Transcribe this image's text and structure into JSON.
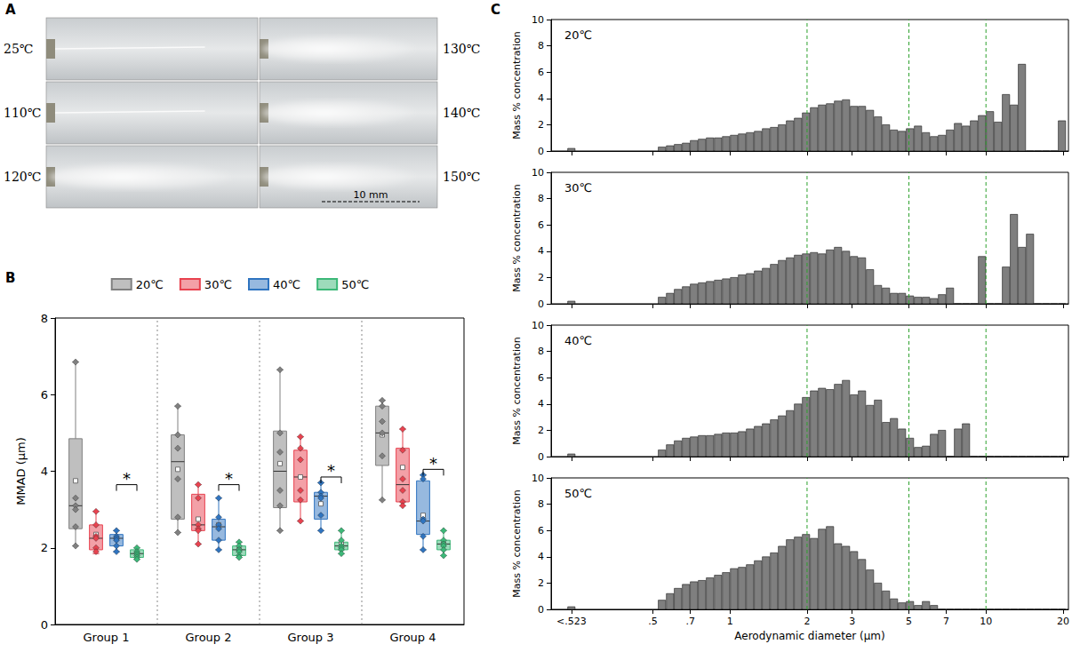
{
  "panel_letters": [
    "A",
    "B",
    "C"
  ],
  "photo_panel": {
    "photos": [
      "25℃",
      "110℃",
      "120℃",
      "130℃",
      "140℃",
      "150℃"
    ],
    "scale_bar": "10 mm"
  },
  "chart_data": [
    {
      "type": "boxplot",
      "categories": [
        "Group 1",
        "Group 2",
        "Group 3",
        "Group 4"
      ],
      "y_label": "MMAD (μm)",
      "ylim": [
        0,
        8
      ],
      "yticks": [
        0,
        2,
        4,
        6,
        8
      ],
      "grid": false,
      "legend": "top",
      "series": [
        {
          "name": "20℃",
          "color": "#808080",
          "boxes": [
            [
              2.05,
              2.5,
              3.1,
              4.85,
              6.85
            ],
            [
              2.4,
              2.75,
              4.25,
              4.95,
              5.7
            ],
            [
              2.45,
              3.05,
              4.0,
              5.05,
              6.65
            ],
            [
              3.25,
              4.15,
              5.0,
              5.7,
              5.85
            ]
          ],
          "means": [
            3.75,
            4.05,
            4.2,
            4.95
          ],
          "points": [
            [
              6.85,
              3.3,
              3.1,
              3.0,
              2.55,
              2.05
            ],
            [
              5.7,
              4.95,
              4.6,
              3.8,
              2.8,
              2.4
            ],
            [
              6.65,
              5.0,
              4.5,
              3.5,
              3.1,
              2.45
            ],
            [
              5.85,
              5.7,
              5.3,
              5.0,
              4.4,
              3.25
            ]
          ]
        },
        {
          "name": "30℃",
          "color": "#e8424f",
          "boxes": [
            [
              1.85,
              1.95,
              2.25,
              2.6,
              2.95
            ],
            [
              2.1,
              2.45,
              2.6,
              3.4,
              3.65
            ],
            [
              2.7,
              3.2,
              3.85,
              4.55,
              4.9
            ],
            [
              3.1,
              3.2,
              3.65,
              4.6,
              5.1
            ]
          ],
          "means": [
            2.35,
            2.75,
            3.85,
            4.1
          ],
          "points": [
            [
              2.95,
              2.6,
              2.3,
              2.25,
              2.0,
              1.9
            ],
            [
              3.65,
              3.3,
              2.6,
              2.5,
              2.45,
              2.1
            ],
            [
              4.9,
              4.6,
              4.3,
              3.5,
              3.25,
              2.7
            ],
            [
              5.1,
              4.55,
              3.8,
              3.5,
              3.2,
              3.1
            ]
          ]
        },
        {
          "name": "40℃",
          "color": "#2f74c0",
          "boxes": [
            [
              1.9,
              2.05,
              2.25,
              2.35,
              2.45
            ],
            [
              1.95,
              2.2,
              2.55,
              2.75,
              3.3
            ],
            [
              2.45,
              2.75,
              3.35,
              3.45,
              3.7
            ],
            [
              1.95,
              2.35,
              2.7,
              3.75,
              3.9
            ]
          ],
          "means": [
            2.25,
            2.6,
            3.15,
            2.85
          ],
          "points": [
            [
              2.45,
              2.3,
              2.25,
              2.2,
              2.05,
              1.9
            ],
            [
              3.3,
              2.8,
              2.6,
              2.5,
              2.2,
              1.95
            ],
            [
              3.7,
              3.45,
              3.35,
              3.3,
              2.85,
              2.45
            ],
            [
              3.9,
              3.8,
              2.75,
              2.7,
              2.3,
              1.95
            ]
          ]
        },
        {
          "name": "50℃",
          "color": "#3cb878",
          "boxes": [
            [
              1.7,
              1.75,
              1.85,
              1.95,
              2.0
            ],
            [
              1.75,
              1.8,
              1.95,
              2.05,
              2.15
            ],
            [
              1.85,
              1.95,
              2.05,
              2.15,
              2.45
            ],
            [
              1.8,
              1.95,
              2.1,
              2.2,
              2.45
            ]
          ],
          "means": [
            1.85,
            1.95,
            2.1,
            2.1
          ],
          "points": [
            [
              2.0,
              1.9,
              1.85,
              1.8,
              1.75,
              1.7
            ],
            [
              2.15,
              2.05,
              1.95,
              1.9,
              1.8,
              1.75
            ],
            [
              2.45,
              2.2,
              2.05,
              2.0,
              1.95,
              1.85
            ],
            [
              2.45,
              2.2,
              2.1,
              2.05,
              1.95,
              1.8
            ]
          ]
        }
      ],
      "annotations": [
        {
          "text": "*",
          "group": "Group 1",
          "between": [
            "40℃",
            "50℃"
          ],
          "y": 3.65
        },
        {
          "text": "*",
          "group": "Group 2",
          "between": [
            "40℃",
            "50℃"
          ],
          "y": 3.65
        },
        {
          "text": "*",
          "group": "Group 3",
          "between": [
            "40℃",
            "50℃"
          ],
          "y": 3.85
        },
        {
          "text": "*",
          "group": "Group 4",
          "between": [
            "40℃",
            "50℃"
          ],
          "y": 4.05
        }
      ]
    },
    {
      "type": "bar",
      "title": "20℃",
      "color": "#7f7f7f",
      "log": "x",
      "tick_labels": "y",
      "y_label": "Mass % concentration",
      "xlim": [
        0.2,
        21
      ],
      "ylim": [
        0,
        10
      ],
      "yticks": [
        0,
        2,
        4,
        6,
        8,
        10
      ],
      "xticks": [
        {
          "value": 0.24,
          "label": "<.523"
        },
        {
          "value": 0.5,
          "label": ".5"
        },
        {
          "value": 0.7,
          "label": ".7"
        },
        1,
        2,
        3,
        5,
        7,
        10,
        20
      ],
      "reference_lines": [
        2,
        5,
        10
      ],
      "x": [
        0.24,
        0.542,
        0.583,
        0.626,
        0.673,
        0.723,
        0.777,
        0.835,
        0.898,
        0.965,
        1.037,
        1.114,
        1.197,
        1.286,
        1.382,
        1.486,
        1.596,
        1.715,
        1.843,
        1.981,
        2.129,
        2.288,
        2.458,
        2.642,
        2.839,
        3.051,
        3.278,
        3.523,
        3.786,
        4.068,
        4.371,
        4.698,
        5.048,
        5.425,
        5.829,
        6.264,
        6.732,
        7.234,
        7.774,
        8.354,
        8.977,
        9.647,
        10.37,
        11.14,
        11.97,
        12.86,
        13.82,
        14.86,
        15.96,
        17.15,
        18.43,
        19.81
      ],
      "values": [
        0.2,
        0.3,
        0.4,
        0.5,
        0.6,
        0.8,
        0.9,
        1.0,
        1.0,
        1.1,
        1.2,
        1.3,
        1.4,
        1.5,
        1.7,
        1.8,
        2.0,
        2.3,
        2.5,
        2.9,
        3.3,
        3.5,
        3.6,
        3.8,
        3.9,
        3.4,
        3.4,
        3.1,
        2.6,
        2.0,
        1.6,
        1.5,
        1.7,
        1.9,
        1.4,
        1.1,
        1.2,
        1.6,
        2.1,
        1.9,
        2.3,
        2.7,
        3.0,
        2.2,
        4.3,
        3.5,
        6.6,
        0,
        0,
        0,
        0,
        2.3
      ]
    },
    {
      "type": "bar",
      "title": "30℃",
      "color": "#7f7f7f",
      "log": "x",
      "tick_labels": "y",
      "y_label": "Mass % concentration",
      "xlim": [
        0.2,
        21
      ],
      "ylim": [
        0,
        10
      ],
      "yticks": [
        0,
        2,
        4,
        6,
        8,
        10
      ],
      "xticks": [
        {
          "value": 0.24,
          "label": "<.523"
        },
        {
          "value": 0.5,
          "label": ".5"
        },
        {
          "value": 0.7,
          "label": ".7"
        },
        1,
        2,
        3,
        5,
        7,
        10,
        20
      ],
      "reference_lines": [
        2,
        5,
        10
      ],
      "x": [
        0.24,
        0.542,
        0.583,
        0.626,
        0.673,
        0.723,
        0.777,
        0.835,
        0.898,
        0.965,
        1.037,
        1.114,
        1.197,
        1.286,
        1.382,
        1.486,
        1.596,
        1.715,
        1.843,
        1.981,
        2.129,
        2.288,
        2.458,
        2.642,
        2.839,
        3.051,
        3.278,
        3.523,
        3.786,
        4.068,
        4.371,
        4.698,
        5.048,
        5.425,
        5.829,
        6.264,
        6.732,
        7.234,
        7.774,
        8.354,
        8.977,
        9.647,
        10.37,
        11.14,
        11.97,
        12.86,
        13.82,
        14.86,
        15.96,
        17.15,
        18.43,
        19.81
      ],
      "values": [
        0.2,
        0.5,
        0.8,
        1.1,
        1.3,
        1.5,
        1.6,
        1.7,
        1.8,
        1.9,
        2.0,
        2.2,
        2.3,
        2.5,
        2.7,
        3.0,
        3.3,
        3.5,
        3.7,
        3.8,
        3.9,
        3.8,
        4.1,
        4.3,
        4.0,
        3.6,
        3.5,
        2.6,
        1.4,
        1.2,
        0.8,
        0.8,
        0.6,
        0.5,
        0.5,
        0.4,
        0.7,
        1.2,
        0,
        0,
        0,
        3.6,
        0,
        0,
        2.8,
        6.8,
        4.3,
        5.3,
        0,
        0,
        0,
        0
      ]
    },
    {
      "type": "bar",
      "title": "40℃",
      "color": "#7f7f7f",
      "log": "x",
      "tick_labels": "y",
      "y_label": "Mass % concentration",
      "xlim": [
        0.2,
        21
      ],
      "ylim": [
        0,
        10
      ],
      "yticks": [
        0,
        2,
        4,
        6,
        8,
        10
      ],
      "xticks": [
        {
          "value": 0.24,
          "label": "<.523"
        },
        {
          "value": 0.5,
          "label": ".5"
        },
        {
          "value": 0.7,
          "label": ".7"
        },
        1,
        2,
        3,
        5,
        7,
        10,
        20
      ],
      "reference_lines": [
        2,
        5,
        10
      ],
      "x": [
        0.24,
        0.542,
        0.583,
        0.626,
        0.673,
        0.723,
        0.777,
        0.835,
        0.898,
        0.965,
        1.037,
        1.114,
        1.197,
        1.286,
        1.382,
        1.486,
        1.596,
        1.715,
        1.843,
        1.981,
        2.129,
        2.288,
        2.458,
        2.642,
        2.839,
        3.051,
        3.278,
        3.523,
        3.786,
        4.068,
        4.371,
        4.698,
        5.048,
        5.425,
        5.829,
        6.264,
        6.732,
        7.234,
        7.774,
        8.354,
        8.977,
        9.647,
        10.37,
        11.14,
        11.97,
        12.86,
        13.82,
        14.86,
        15.96,
        17.15,
        18.43,
        19.81
      ],
      "values": [
        0.2,
        0.5,
        0.9,
        1.2,
        1.4,
        1.5,
        1.6,
        1.6,
        1.7,
        1.8,
        1.8,
        1.9,
        2.1,
        2.3,
        2.5,
        2.8,
        3.1,
        3.5,
        4.0,
        4.5,
        5.0,
        5.2,
        5.1,
        5.5,
        5.8,
        4.7,
        5.0,
        3.9,
        4.3,
        2.6,
        2.9,
        2.1,
        1.4,
        0.7,
        0.8,
        1.7,
        2.0,
        0,
        2.1,
        2.5,
        0,
        0,
        0,
        0,
        0,
        0,
        0,
        0,
        0,
        0,
        0,
        0
      ]
    },
    {
      "type": "bar",
      "title": "50℃",
      "color": "#7f7f7f",
      "log": "x",
      "x_label": "Aerodynamic diameter (μm)",
      "y_label": "Mass % concentration",
      "xlim": [
        0.2,
        21
      ],
      "ylim": [
        0,
        10
      ],
      "yticks": [
        0,
        2,
        4,
        6,
        8,
        10
      ],
      "xticks": [
        {
          "value": 0.24,
          "label": "<.523"
        },
        {
          "value": 0.5,
          "label": ".5"
        },
        {
          "value": 0.7,
          "label": ".7"
        },
        1,
        2,
        3,
        5,
        7,
        10,
        20
      ],
      "reference_lines": [
        2,
        5,
        10
      ],
      "x": [
        0.24,
        0.542,
        0.583,
        0.626,
        0.673,
        0.723,
        0.777,
        0.835,
        0.898,
        0.965,
        1.037,
        1.114,
        1.197,
        1.286,
        1.382,
        1.486,
        1.596,
        1.715,
        1.843,
        1.981,
        2.129,
        2.288,
        2.458,
        2.642,
        2.839,
        3.051,
        3.278,
        3.523,
        3.786,
        4.068,
        4.371,
        4.698,
        5.048,
        5.425,
        5.829,
        6.264,
        6.732,
        7.234,
        7.774,
        8.354,
        8.977,
        9.647,
        10.37,
        11.14,
        11.97,
        12.86,
        13.82,
        14.86,
        15.96,
        17.15,
        18.43,
        19.81
      ],
      "values": [
        0.2,
        0.7,
        1.2,
        1.6,
        1.9,
        2.1,
        2.2,
        2.4,
        2.6,
        2.8,
        3.1,
        3.2,
        3.4,
        3.7,
        4.0,
        4.3,
        4.8,
        5.3,
        5.5,
        5.7,
        5.4,
        6.1,
        6.3,
        5.0,
        4.8,
        4.4,
        3.8,
        3.0,
        2.0,
        1.4,
        0.8,
        0.5,
        0.6,
        0.3,
        0.6,
        0.3,
        0,
        0,
        0,
        0,
        0,
        0,
        0,
        0,
        0,
        0,
        0,
        0,
        0,
        0,
        0,
        0
      ]
    }
  ]
}
